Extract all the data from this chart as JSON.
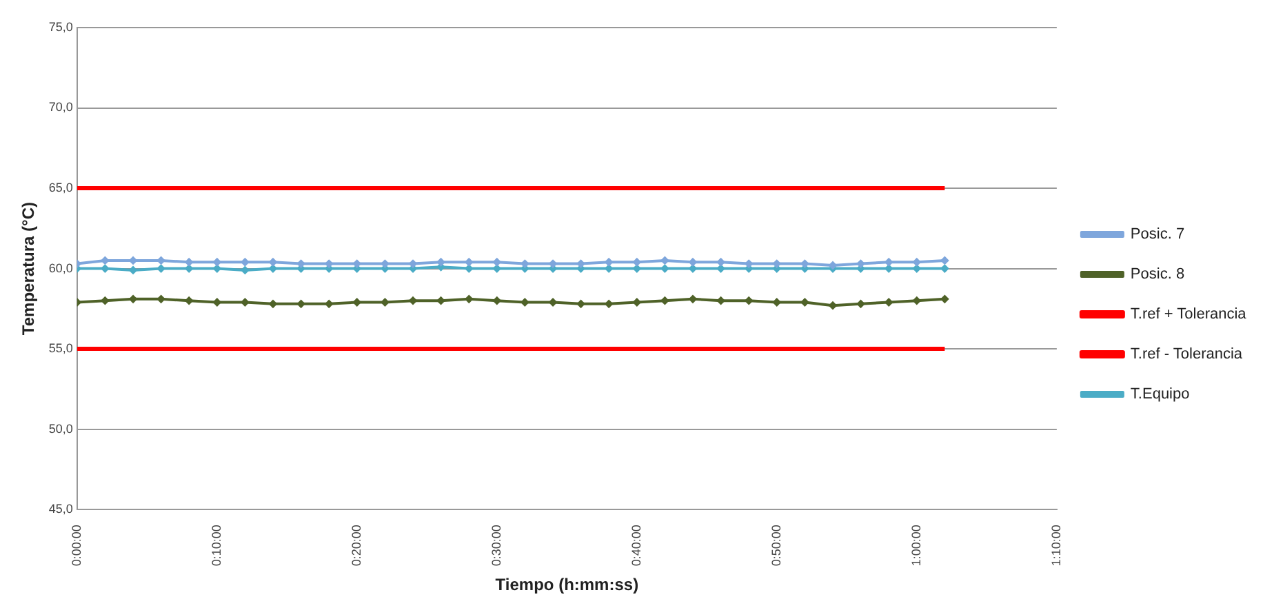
{
  "chart_data": {
    "type": "line",
    "xlabel": "Tiempo (h:mm:ss)",
    "ylabel": "Temperatura (°C)",
    "x": [
      0,
      0.0333,
      0.0667,
      0.1,
      0.1333,
      0.1667,
      0.2,
      0.2333,
      0.2667,
      0.3,
      0.3333,
      0.3667,
      0.4,
      0.4333,
      0.4667,
      0.5,
      0.5333,
      0.5667,
      0.6,
      0.6333,
      0.6667,
      0.7,
      0.7333,
      0.7667,
      0.8,
      0.8333,
      0.8667,
      0.9,
      0.9333,
      0.9667,
      1.0,
      1.0333
    ],
    "series": [
      {
        "name": "Posic. 7",
        "color": "#7ea6dc",
        "marker": "diamond",
        "values": [
          60.3,
          60.5,
          60.5,
          60.5,
          60.4,
          60.4,
          60.4,
          60.4,
          60.3,
          60.3,
          60.3,
          60.3,
          60.3,
          60.4,
          60.4,
          60.4,
          60.3,
          60.3,
          60.3,
          60.4,
          60.4,
          60.5,
          60.4,
          60.4,
          60.3,
          60.3,
          60.3,
          60.2,
          60.3,
          60.4,
          60.4,
          60.5
        ]
      },
      {
        "name": "Posic. 8",
        "color": "#4f6228",
        "marker": "diamond",
        "values": [
          57.9,
          58.0,
          58.1,
          58.1,
          58.0,
          57.9,
          57.9,
          57.8,
          57.8,
          57.8,
          57.9,
          57.9,
          58.0,
          58.0,
          58.1,
          58.0,
          57.9,
          57.9,
          57.8,
          57.8,
          57.9,
          58.0,
          58.1,
          58.0,
          58.0,
          57.9,
          57.9,
          57.7,
          57.8,
          57.9,
          58.0,
          58.1
        ]
      },
      {
        "name": "T.ref + Tolerancia",
        "color": "#ff0000",
        "marker": "none",
        "values": [
          65,
          65,
          65,
          65,
          65,
          65,
          65,
          65,
          65,
          65,
          65,
          65,
          65,
          65,
          65,
          65,
          65,
          65,
          65,
          65,
          65,
          65,
          65,
          65,
          65,
          65,
          65,
          65,
          65,
          65,
          65,
          65
        ]
      },
      {
        "name": "T.ref - Tolerancia",
        "color": "#ff0000",
        "marker": "none",
        "values": [
          55,
          55,
          55,
          55,
          55,
          55,
          55,
          55,
          55,
          55,
          55,
          55,
          55,
          55,
          55,
          55,
          55,
          55,
          55,
          55,
          55,
          55,
          55,
          55,
          55,
          55,
          55,
          55,
          55,
          55,
          55,
          55
        ]
      },
      {
        "name": "T.Equipo",
        "color": "#4bacc6",
        "marker": "diamond",
        "values": [
          60.0,
          60.0,
          59.9,
          60.0,
          60.0,
          60.0,
          59.9,
          60.0,
          60.0,
          60.0,
          60.0,
          60.0,
          60.0,
          60.1,
          60.0,
          60.0,
          60.0,
          60.0,
          60.0,
          60.0,
          60.0,
          60.0,
          60.0,
          60.0,
          60.0,
          60.0,
          60.0,
          60.0,
          60.0,
          60.0,
          60.0,
          60.0
        ]
      }
    ],
    "xlim": [
      0,
      1.1667
    ],
    "xticks": [
      {
        "value": 0,
        "label": "0:00:00"
      },
      {
        "value": 0.1667,
        "label": "0:10:00"
      },
      {
        "value": 0.3333,
        "label": "0:20:00"
      },
      {
        "value": 0.5,
        "label": "0:30:00"
      },
      {
        "value": 0.6667,
        "label": "0:40:00"
      },
      {
        "value": 0.8333,
        "label": "0:50:00"
      },
      {
        "value": 1.0,
        "label": "1:00:00"
      },
      {
        "value": 1.1667,
        "label": "1:10:00"
      }
    ],
    "ylim": [
      45,
      75
    ],
    "yticks": [
      {
        "value": 45,
        "label": "45,0"
      },
      {
        "value": 50,
        "label": "50,0"
      },
      {
        "value": 55,
        "label": "55,0"
      },
      {
        "value": 60,
        "label": "60,0"
      },
      {
        "value": 65,
        "label": "65,0"
      },
      {
        "value": 70,
        "label": "70,0"
      },
      {
        "value": 75,
        "label": "75,0"
      }
    ],
    "grid": "y",
    "legend": "right",
    "line_style": "solid"
  }
}
